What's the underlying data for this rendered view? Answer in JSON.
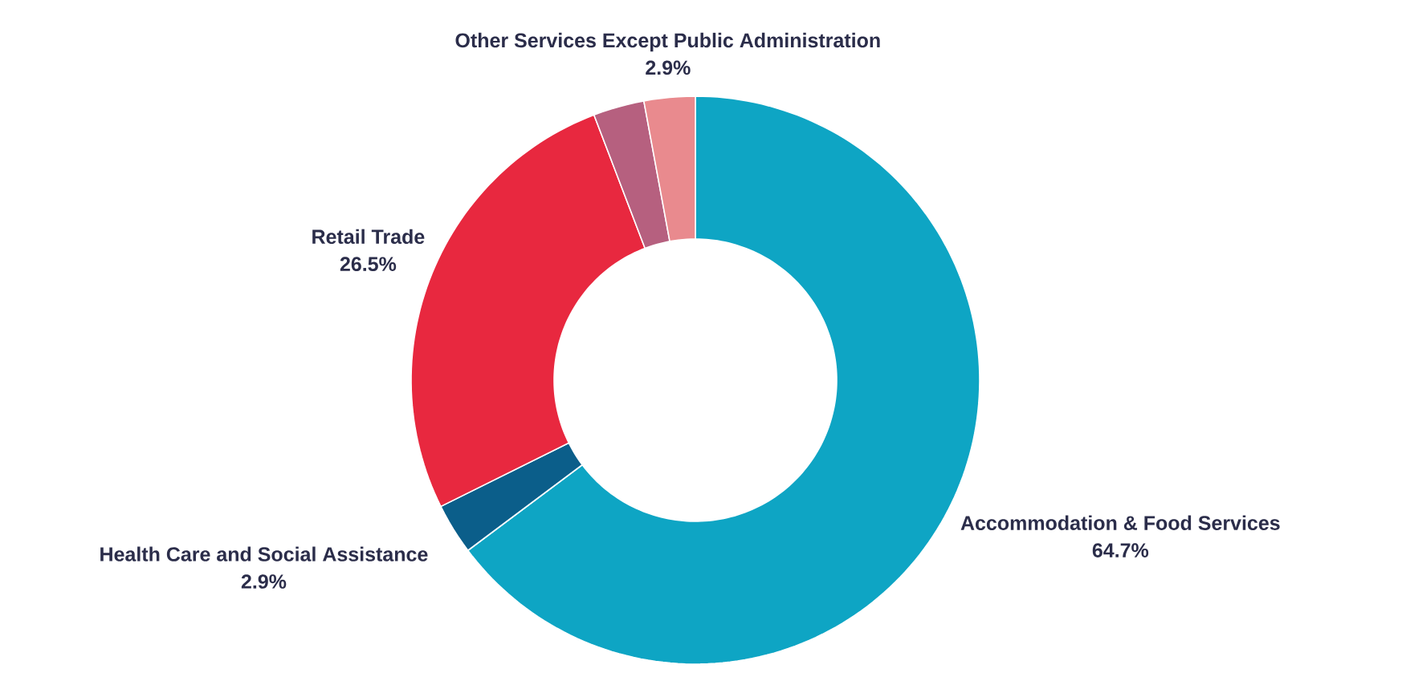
{
  "chart_data": {
    "type": "donut",
    "categories": [
      "Accommodation & Food Services",
      "Health Care and Social Assistance",
      "Retail Trade",
      null,
      "Other Services Except Public Administration"
    ],
    "values": [
      64.7,
      2.9,
      26.5,
      2.9,
      2.9
    ],
    "value_labels": [
      "64.7%",
      "2.9%",
      "26.5%",
      null,
      "2.9%"
    ],
    "colors": [
      "#0ea5c4",
      "#0b5e8a",
      "#e8283f",
      "#b6607f",
      "#e98a8e"
    ]
  }
}
